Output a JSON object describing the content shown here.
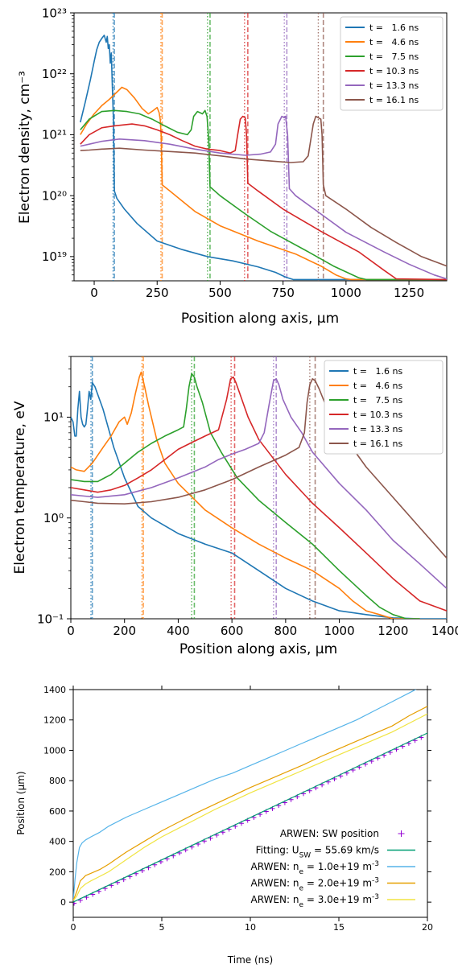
{
  "chart_data": [
    {
      "type": "line",
      "ylabel": "Electron density, cm⁻³",
      "xlabel": "Position along axis, μm",
      "xlim": [
        -80,
        1400
      ],
      "ylim": [
        4e+18,
        1e+23
      ],
      "yscale": "log",
      "x_ticks": [
        0,
        250,
        500,
        750,
        1000,
        1250
      ],
      "y_ticks": [
        "10¹⁹",
        "10²⁰",
        "10²¹",
        "10²²",
        "10²³"
      ],
      "y_tick_values": [
        1e+19,
        1e+20,
        1e+21,
        1e+22,
        1e+23
      ],
      "grid": false,
      "legend_position": "top-right",
      "series": [
        {
          "name": "t =   1.6 ns",
          "color": "#1f77b4",
          "front_dashed": 80,
          "front_dotted": 75,
          "x": [
            -55,
            -35,
            -15,
            0,
            10,
            20,
            30,
            40,
            48,
            52,
            56,
            60,
            64,
            68,
            72,
            76,
            80,
            90,
            120,
            170,
            250,
            350,
            450,
            550,
            650,
            720,
            760,
            790,
            1400
          ],
          "y": [
            1.6e+21,
            3.5e+21,
            8e+21,
            1.6e+22,
            2.5e+22,
            3.3e+22,
            3.8e+22,
            4.3e+22,
            3.3e+22,
            4.1e+22,
            2.6e+22,
            3e+22,
            1.5e+22,
            2.2e+22,
            6e+21,
            2e+21,
            1.2e+20,
            9e+19,
            6e+19,
            3.5e+19,
            1.8e+19,
            1.3e+19,
            1e+19,
            8.5e+18,
            6.8e+18,
            5.5e+18,
            4.6e+18,
            4.2e+18,
            4.2e+18
          ]
        },
        {
          "name": "t =   4.6 ns",
          "color": "#ff7f0e",
          "front_dashed": 270,
          "front_dotted": 265,
          "x": [
            -55,
            -30,
            0,
            30,
            60,
            90,
            110,
            130,
            160,
            190,
            215,
            235,
            250,
            258,
            262,
            266,
            270,
            300,
            400,
            500,
            650,
            800,
            900,
            960,
            1000,
            1020,
            1400
          ],
          "y": [
            1e+21,
            1.5e+21,
            2.2e+21,
            3e+21,
            3.8e+21,
            5e+21,
            6e+21,
            5.5e+21,
            4e+21,
            2.7e+21,
            2.2e+21,
            2.5e+21,
            2.8e+21,
            2.3e+21,
            1.8e+21,
            1e+21,
            1.5e+20,
            1.2e+20,
            5.5e+19,
            3.2e+19,
            1.8e+19,
            1.1e+19,
            7e+18,
            5e+18,
            4.3e+18,
            4.2e+18,
            4.2e+18
          ]
        },
        {
          "name": "t =   7.5 ns",
          "color": "#2ca02c",
          "front_dashed": 460,
          "front_dotted": 450,
          "x": [
            -55,
            -20,
            30,
            80,
            130,
            180,
            230,
            280,
            330,
            370,
            385,
            395,
            410,
            420,
            430,
            440,
            448,
            455,
            460,
            500,
            600,
            700,
            850,
            950,
            1050,
            1080,
            1400
          ],
          "y": [
            1.2e+21,
            1.8e+21,
            2.4e+21,
            2.5e+21,
            2.4e+21,
            2.2e+21,
            1.8e+21,
            1.4e+21,
            1.1e+21,
            1e+21,
            1.2e+21,
            2e+21,
            2.4e+21,
            2.3e+21,
            2.2e+21,
            2.5e+21,
            2e+21,
            8e+20,
            1.4e+20,
            1e+20,
            5e+19,
            2.6e+19,
            1.2e+19,
            7e+18,
            4.5e+18,
            4.2e+18,
            4.2e+18
          ]
        },
        {
          "name": "t = 10.3 ns",
          "color": "#d62728",
          "front_dashed": 610,
          "front_dotted": 597,
          "x": [
            -55,
            -20,
            30,
            80,
            150,
            200,
            250,
            300,
            350,
            400,
            450,
            500,
            540,
            560,
            570,
            580,
            590,
            600,
            605,
            610,
            650,
            750,
            900,
            1050,
            1150,
            1200,
            1400
          ],
          "y": [
            7e+20,
            1e+21,
            1.3e+21,
            1.4e+21,
            1.5e+21,
            1.4e+21,
            1.2e+21,
            1e+21,
            8e+20,
            6.5e+20,
            5.8e+20,
            5.5e+20,
            5e+20,
            5.5e+20,
            1e+21,
            1.8e+21,
            2e+21,
            1.9e+21,
            1e+21,
            1.6e+20,
            1.2e+20,
            6e+19,
            2.6e+19,
            1.2e+19,
            6e+18,
            4.3e+18,
            4.2e+18
          ]
        },
        {
          "name": "t = 13.3 ns",
          "color": "#9467bd",
          "front_dashed": 765,
          "front_dotted": 755,
          "x": [
            -55,
            -20,
            30,
            100,
            200,
            300,
            400,
            500,
            600,
            660,
            700,
            720,
            730,
            745,
            755,
            760,
            768,
            775,
            800,
            900,
            1000,
            1150,
            1250,
            1350,
            1400
          ],
          "y": [
            6.5e+20,
            7e+20,
            7.8e+20,
            8.5e+20,
            8e+20,
            7e+20,
            5.8e+20,
            5e+20,
            4.6e+20,
            4.8e+20,
            5.2e+20,
            7e+20,
            1.5e+21,
            2e+21,
            1.9e+21,
            2e+21,
            1e+21,
            1.3e+20,
            1e+20,
            5e+19,
            2.5e+19,
            1.2e+19,
            7.5e+18,
            5e+18,
            4.3e+18
          ]
        },
        {
          "name": "t = 16.1 ns",
          "color": "#8c564b",
          "front_dashed": 910,
          "front_dotted": 890,
          "x": [
            -55,
            -20,
            30,
            100,
            200,
            300,
            400,
            500,
            600,
            700,
            780,
            830,
            850,
            870,
            880,
            890,
            900,
            905,
            910,
            920,
            1000,
            1100,
            1200,
            1300,
            1400
          ],
          "y": [
            5.5e+20,
            5.6e+20,
            5.8e+20,
            6e+20,
            5.6e+20,
            5.3e+20,
            5e+20,
            4.5e+20,
            4e+20,
            3.7e+20,
            3.5e+20,
            3.6e+20,
            4.5e+20,
            1.5e+21,
            2e+21,
            1.9e+21,
            1.8e+21,
            1e+21,
            1.5e+20,
            1e+20,
            6e+19,
            3e+19,
            1.7e+19,
            1e+19,
            7e+18
          ]
        }
      ]
    },
    {
      "type": "line",
      "ylabel": "Electron temperature, eV",
      "xlabel": "Position along axis, μm",
      "xlim": [
        0,
        1400
      ],
      "ylim": [
        0.1,
        40
      ],
      "yscale": "log",
      "x_ticks": [
        0,
        200,
        400,
        600,
        800,
        1000,
        1200,
        1400
      ],
      "y_ticks": [
        "10⁻¹",
        "10⁰",
        "10¹"
      ],
      "y_tick_values": [
        0.1,
        1,
        10
      ],
      "grid": false,
      "legend_position": "top-right",
      "series": [
        {
          "name": "t =   1.6 ns",
          "color": "#1f77b4",
          "front_dashed": 80,
          "front_dotted": 75,
          "x": [
            0,
            8,
            15,
            20,
            26,
            32,
            38,
            44,
            50,
            56,
            62,
            68,
            74,
            80,
            90,
            120,
            160,
            200,
            250,
            300,
            400,
            500,
            600,
            700,
            800,
            900,
            1000,
            1100,
            1200,
            1300,
            1400
          ],
          "y": [
            10,
            9,
            6.5,
            6.5,
            12,
            18,
            10,
            8.5,
            8,
            8.5,
            12,
            18,
            15,
            22,
            20,
            12,
            5,
            2.5,
            1.3,
            1.0,
            0.7,
            0.55,
            0.45,
            0.3,
            0.2,
            0.15,
            0.12,
            0.11,
            0.102,
            0.1,
            0.1
          ]
        },
        {
          "name": "t =   4.6 ns",
          "color": "#ff7f0e",
          "front_dashed": 270,
          "front_dotted": 265,
          "x": [
            0,
            20,
            50,
            80,
            120,
            150,
            180,
            200,
            210,
            225,
            240,
            255,
            262,
            268,
            275,
            290,
            320,
            350,
            400,
            500,
            600,
            700,
            800,
            900,
            1000,
            1050,
            1100,
            1150,
            1200,
            1250,
            1300
          ],
          "y": [
            3.2,
            3.0,
            2.9,
            3.5,
            5,
            6.5,
            9,
            10,
            8.5,
            11,
            17,
            25,
            28,
            24,
            20,
            13,
            6,
            3.5,
            2.2,
            1.2,
            0.8,
            0.55,
            0.4,
            0.3,
            0.2,
            0.15,
            0.12,
            0.11,
            0.1,
            0.1,
            0.1
          ]
        },
        {
          "name": "t =   7.5 ns",
          "color": "#2ca02c",
          "front_dashed": 460,
          "front_dotted": 450,
          "x": [
            0,
            50,
            100,
            150,
            200,
            250,
            300,
            350,
            400,
            420,
            430,
            440,
            450,
            460,
            470,
            490,
            520,
            560,
            620,
            700,
            800,
            900,
            1000,
            1100,
            1150,
            1200,
            1250,
            1300
          ],
          "y": [
            2.4,
            2.3,
            2.3,
            2.7,
            3.5,
            4.5,
            5.5,
            6.5,
            7.5,
            8,
            12,
            20,
            27,
            25,
            20,
            14,
            7,
            4.5,
            2.5,
            1.5,
            0.9,
            0.55,
            0.3,
            0.17,
            0.13,
            0.11,
            0.1,
            0.1
          ]
        },
        {
          "name": "t = 10.3 ns",
          "color": "#d62728",
          "front_dashed": 610,
          "front_dotted": 597,
          "x": [
            0,
            50,
            100,
            150,
            200,
            250,
            300,
            350,
            400,
            450,
            500,
            550,
            580,
            595,
            605,
            615,
            630,
            660,
            700,
            800,
            900,
            1000,
            1100,
            1200,
            1300,
            1400
          ],
          "y": [
            2.0,
            1.9,
            1.8,
            1.9,
            2.1,
            2.5,
            3.0,
            3.8,
            4.8,
            5.6,
            6.5,
            7.5,
            15,
            24,
            25,
            22,
            17,
            10,
            6,
            2.7,
            1.4,
            0.8,
            0.45,
            0.25,
            0.15,
            0.12
          ]
        },
        {
          "name": "t = 13.3 ns",
          "color": "#9467bd",
          "front_dashed": 765,
          "front_dotted": 755,
          "x": [
            0,
            50,
            100,
            200,
            300,
            400,
            500,
            550,
            600,
            650,
            700,
            720,
            740,
            755,
            765,
            775,
            790,
            820,
            860,
            900,
            1000,
            1100,
            1200,
            1300,
            1400
          ],
          "y": [
            1.7,
            1.65,
            1.6,
            1.7,
            2.0,
            2.5,
            3.2,
            3.8,
            4.3,
            4.8,
            5.5,
            7,
            14,
            23,
            24,
            21,
            15,
            10,
            7,
            4.5,
            2.2,
            1.2,
            0.6,
            0.35,
            0.2
          ]
        },
        {
          "name": "t = 16.1 ns",
          "color": "#8c564b",
          "front_dashed": 910,
          "front_dotted": 890,
          "x": [
            0,
            50,
            100,
            200,
            300,
            400,
            500,
            600,
            700,
            800,
            850,
            870,
            880,
            890,
            900,
            910,
            925,
            950,
            1000,
            1100,
            1200,
            1300,
            1400
          ],
          "y": [
            1.5,
            1.45,
            1.4,
            1.38,
            1.45,
            1.6,
            1.9,
            2.4,
            3.2,
            4.2,
            5.0,
            7,
            14,
            21,
            24,
            23,
            19,
            13,
            7.5,
            3.2,
            1.6,
            0.8,
            0.4
          ]
        }
      ]
    },
    {
      "type": "line",
      "xlabel": "Time (ns)",
      "ylabel": "Position (μm)",
      "xlim": [
        0,
        20
      ],
      "ylim": [
        -100,
        1400
      ],
      "x_ticks": [
        0,
        5,
        10,
        15,
        20
      ],
      "y_ticks": [
        0,
        200,
        400,
        600,
        800,
        1000,
        1200,
        1400
      ],
      "grid": false,
      "legend_position": "bottom-right",
      "series": [
        {
          "name": "ARWEN: SW position",
          "color": "#9400d3",
          "style": "markers",
          "x_start": 0.05,
          "x_end": 19.95,
          "x_step": 0.35,
          "slope": 55.69,
          "offset": -10
        },
        {
          "name": "Fitting: U",
          "subscript": "SW",
          "name_suffix": " = 55.69 km/s",
          "color": "#009e73",
          "style": "line",
          "x": [
            0,
            20
          ],
          "y": [
            0,
            1114
          ]
        },
        {
          "name": "ARWEN: n",
          "subscript": "e",
          "name_suffix": " = 1.0e+19 m",
          "superscript": "-3",
          "color": "#56b4e9",
          "style": "line",
          "x": [
            0,
            0.1,
            0.2,
            0.35,
            0.5,
            0.7,
            1,
            1.5,
            2,
            3,
            4,
            5,
            6,
            7,
            8,
            9,
            10,
            11,
            12,
            13,
            14,
            15,
            16,
            17,
            18,
            19,
            20
          ],
          "y": [
            10,
            150,
            260,
            360,
            390,
            410,
            430,
            460,
            500,
            560,
            610,
            660,
            710,
            760,
            810,
            850,
            900,
            950,
            1000,
            1050,
            1100,
            1150,
            1200,
            1260,
            1320,
            1380,
            1440
          ]
        },
        {
          "name": "ARWEN: n",
          "subscript": "e",
          "name_suffix": " = 2.0e+19 m",
          "superscript": "-3",
          "color": "#e69f00",
          "style": "line",
          "x": [
            0,
            0.2,
            0.4,
            0.7,
            1,
            1.5,
            2,
            2.5,
            3,
            4,
            5,
            6,
            7,
            8,
            9,
            10,
            11,
            12,
            13,
            14,
            15,
            16,
            17,
            18,
            19,
            20
          ],
          "y": [
            10,
            70,
            140,
            175,
            190,
            215,
            250,
            290,
            330,
            400,
            470,
            530,
            590,
            645,
            700,
            755,
            805,
            855,
            905,
            960,
            1010,
            1060,
            1110,
            1160,
            1230,
            1290
          ]
        },
        {
          "name": "ARWEN: n",
          "subscript": "e",
          "name_suffix": " = 3.0e+19 m",
          "superscript": "-3",
          "color": "#f0e442",
          "style": "line",
          "x": [
            0,
            0.2,
            0.4,
            0.7,
            1,
            1.5,
            2,
            2.5,
            3,
            4,
            5,
            6,
            7,
            8,
            9,
            10,
            11,
            12,
            13,
            14,
            15,
            16,
            17,
            18,
            19,
            20
          ],
          "y": [
            10,
            40,
            90,
            120,
            140,
            170,
            200,
            240,
            280,
            360,
            430,
            490,
            550,
            610,
            665,
            720,
            770,
            820,
            870,
            920,
            970,
            1020,
            1070,
            1120,
            1180,
            1240
          ]
        }
      ]
    }
  ]
}
